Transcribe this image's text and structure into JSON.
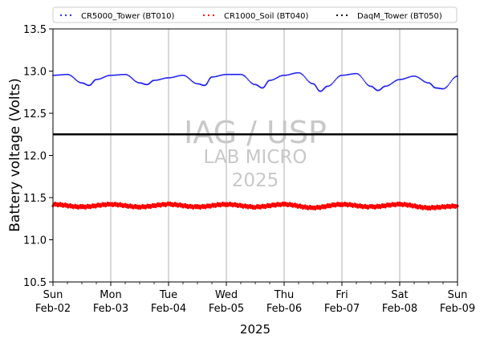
{
  "chart_data": {
    "type": "scatter",
    "xlabel": "2025",
    "ylabel": "Battery voltage (Volts)",
    "ylim": [
      10.5,
      13.5
    ],
    "xlim": [
      "2025-02-02",
      "2025-02-09"
    ],
    "y_ticks": [
      "10.5",
      "11.0",
      "11.5",
      "12.0",
      "12.5",
      "13.0",
      "13.5"
    ],
    "y_tick_values": [
      10.5,
      11.0,
      11.5,
      12.0,
      12.5,
      13.0,
      13.5
    ],
    "x_ticks": [
      {
        "date": "2025-02-02",
        "day": "Sun",
        "label": "Feb-02"
      },
      {
        "date": "2025-02-03",
        "day": "Mon",
        "label": "Feb-03"
      },
      {
        "date": "2025-02-04",
        "day": "Tue",
        "label": "Feb-04"
      },
      {
        "date": "2025-02-05",
        "day": "Wed",
        "label": "Feb-05"
      },
      {
        "date": "2025-02-06",
        "day": "Thu",
        "label": "Feb-06"
      },
      {
        "date": "2025-02-07",
        "day": "Fri",
        "label": "Feb-07"
      },
      {
        "date": "2025-02-08",
        "day": "Sat",
        "label": "Feb-08"
      },
      {
        "date": "2025-02-09",
        "day": "Sun",
        "label": "Feb-09"
      }
    ],
    "grid": "vertical lines at day ticks",
    "legend_placement": "top, above plot",
    "reference_line": {
      "y": 12.25,
      "color": "#000000"
    },
    "series": [
      {
        "name": "CR5000_Tower (BT010)",
        "color": "#2020ee",
        "x": [
          "2025-02-02 00:00",
          "2025-02-02 06:00",
          "2025-02-02 12:00",
          "2025-02-02 15:00",
          "2025-02-02 18:00",
          "2025-02-03 00:00",
          "2025-02-03 06:00",
          "2025-02-03 12:00",
          "2025-02-03 15:00",
          "2025-02-03 18:00",
          "2025-02-04 00:00",
          "2025-02-04 06:00",
          "2025-02-04 12:00",
          "2025-02-04 15:00",
          "2025-02-04 18:00",
          "2025-02-05 00:00",
          "2025-02-05 06:00",
          "2025-02-05 12:00",
          "2025-02-05 15:00",
          "2025-02-05 18:00",
          "2025-02-06 00:00",
          "2025-02-06 06:00",
          "2025-02-06 12:00",
          "2025-02-06 15:00",
          "2025-02-06 18:00",
          "2025-02-07 00:00",
          "2025-02-07 06:00",
          "2025-02-07 12:00",
          "2025-02-07 15:00",
          "2025-02-07 18:00",
          "2025-02-08 00:00",
          "2025-02-08 06:00",
          "2025-02-08 12:00",
          "2025-02-08 15:00",
          "2025-02-08 18:00",
          "2025-02-09 00:00"
        ],
        "y": [
          12.95,
          12.96,
          12.86,
          12.83,
          12.9,
          12.95,
          12.96,
          12.86,
          12.84,
          12.89,
          12.92,
          12.95,
          12.85,
          12.83,
          12.93,
          12.96,
          12.96,
          12.84,
          12.8,
          12.89,
          12.95,
          12.98,
          12.85,
          12.76,
          12.82,
          12.95,
          12.97,
          12.82,
          12.77,
          12.82,
          12.9,
          12.94,
          12.86,
          12.8,
          12.79,
          12.94
        ]
      },
      {
        "name": "CR1000_Soil (BT040)",
        "color": "#ff0000",
        "x": [
          "2025-02-02 00:00",
          "2025-02-02 12:00",
          "2025-02-03 00:00",
          "2025-02-03 12:00",
          "2025-02-04 00:00",
          "2025-02-04 12:00",
          "2025-02-05 00:00",
          "2025-02-05 12:00",
          "2025-02-06 00:00",
          "2025-02-06 12:00",
          "2025-02-07 00:00",
          "2025-02-07 12:00",
          "2025-02-08 00:00",
          "2025-02-08 12:00",
          "2025-02-09 00:00"
        ],
        "y": [
          11.42,
          11.39,
          11.42,
          11.39,
          11.42,
          11.39,
          11.42,
          11.39,
          11.42,
          11.38,
          11.42,
          11.39,
          11.42,
          11.38,
          11.4
        ]
      },
      {
        "name": "DaqM_Tower (BT050)",
        "color": "#000000",
        "x": [],
        "y": []
      }
    ],
    "watermark": [
      "IAG / USP",
      "LAB MICRO",
      "2025"
    ]
  }
}
